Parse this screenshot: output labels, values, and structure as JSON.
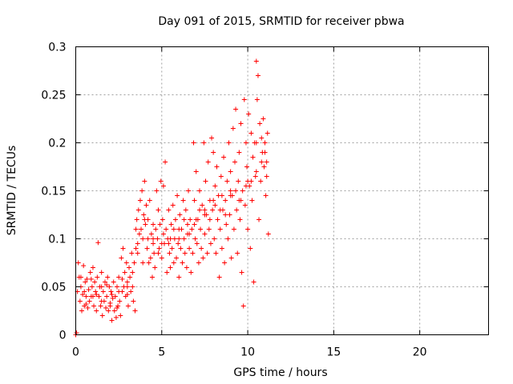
{
  "chart_data": {
    "type": "scatter",
    "title": "Day 091 of 2015, SRMTID for receiver pbwa",
    "xlabel": "GPS time / hours",
    "ylabel": "SRMTID / TECUs",
    "xlim": [
      0,
      24
    ],
    "ylim": [
      0,
      0.3
    ],
    "xticks": [
      0,
      5,
      10,
      15,
      20
    ],
    "xtick_labels": [
      "0",
      "5",
      "10",
      "15",
      "20"
    ],
    "yticks": [
      0,
      0.05,
      0.1,
      0.15,
      0.2,
      0.25,
      0.3
    ],
    "ytick_labels": [
      "0",
      "0.05",
      "0.1",
      "0.15",
      "0.2",
      "0.25",
      "0.3"
    ],
    "grid": true,
    "marker": "+",
    "color": "#ff0000",
    "series": [
      {
        "name": "SRMTID pbwa",
        "points": [
          [
            0.0,
            0.0
          ],
          [
            0.05,
            0.002
          ],
          [
            0.1,
            0.045
          ],
          [
            0.15,
            0.075
          ],
          [
            0.2,
            0.06
          ],
          [
            0.25,
            0.035
          ],
          [
            0.3,
            0.05
          ],
          [
            0.35,
            0.025
          ],
          [
            0.4,
            0.042
          ],
          [
            0.45,
            0.072
          ],
          [
            0.5,
            0.03
          ],
          [
            0.55,
            0.055
          ],
          [
            0.6,
            0.04
          ],
          [
            0.65,
            0.058
          ],
          [
            0.7,
            0.028
          ],
          [
            0.75,
            0.047
          ],
          [
            0.8,
            0.035
          ],
          [
            0.85,
            0.065
          ],
          [
            0.9,
            0.04
          ],
          [
            0.95,
            0.05
          ],
          [
            1.0,
            0.07
          ],
          [
            1.05,
            0.03
          ],
          [
            1.1,
            0.055
          ],
          [
            1.15,
            0.045
          ],
          [
            1.2,
            0.025
          ],
          [
            1.25,
            0.06
          ],
          [
            1.3,
            0.096
          ],
          [
            1.35,
            0.04
          ],
          [
            1.4,
            0.05
          ],
          [
            1.45,
            0.03
          ],
          [
            1.5,
            0.065
          ],
          [
            1.55,
            0.02
          ],
          [
            1.6,
            0.045
          ],
          [
            1.65,
            0.035
          ],
          [
            1.7,
            0.055
          ],
          [
            1.75,
            0.028
          ],
          [
            1.8,
            0.04
          ],
          [
            1.85,
            0.06
          ],
          [
            1.9,
            0.025
          ],
          [
            1.95,
            0.05
          ],
          [
            2.0,
            0.033
          ],
          [
            2.05,
            0.045
          ],
          [
            2.1,
            0.015
          ],
          [
            2.15,
            0.038
          ],
          [
            2.2,
            0.055
          ],
          [
            2.25,
            0.025
          ],
          [
            2.3,
            0.04
          ],
          [
            2.35,
            0.018
          ],
          [
            2.4,
            0.05
          ],
          [
            2.45,
            0.03
          ],
          [
            2.5,
            0.06
          ],
          [
            2.55,
            0.035
          ],
          [
            2.6,
            0.02
          ],
          [
            2.65,
            0.08
          ],
          [
            2.7,
            0.045
          ],
          [
            2.75,
            0.09
          ],
          [
            2.8,
            0.05
          ],
          [
            2.85,
            0.065
          ],
          [
            2.9,
            0.04
          ],
          [
            2.95,
            0.075
          ],
          [
            3.0,
            0.055
          ],
          [
            3.05,
            0.03
          ],
          [
            3.1,
            0.07
          ],
          [
            3.15,
            0.06
          ],
          [
            3.2,
            0.045
          ],
          [
            3.25,
            0.085
          ],
          [
            3.3,
            0.05
          ],
          [
            3.35,
            0.035
          ],
          [
            3.4,
            0.075
          ],
          [
            3.45,
            0.025
          ],
          [
            3.5,
            0.11
          ],
          [
            3.55,
            0.12
          ],
          [
            3.6,
            0.095
          ],
          [
            3.65,
            0.13
          ],
          [
            3.7,
            0.105
          ],
          [
            3.75,
            0.14
          ],
          [
            3.8,
            0.11
          ],
          [
            3.85,
            0.15
          ],
          [
            3.9,
            0.1
          ],
          [
            3.95,
            0.125
          ],
          [
            4.0,
            0.16
          ],
          [
            4.05,
            0.115
          ],
          [
            4.1,
            0.135
          ],
          [
            4.15,
            0.09
          ],
          [
            4.2,
            0.12
          ],
          [
            4.25,
            0.075
          ],
          [
            4.3,
            0.14
          ],
          [
            4.35,
            0.08
          ],
          [
            4.4,
            0.105
          ],
          [
            4.45,
            0.06
          ],
          [
            4.5,
            0.095
          ],
          [
            4.55,
            0.085
          ],
          [
            4.6,
            0.07
          ],
          [
            4.65,
            0.11
          ],
          [
            4.7,
            0.15
          ],
          [
            4.75,
            0.1
          ],
          [
            4.8,
            0.13
          ],
          [
            4.85,
            0.09
          ],
          [
            4.9,
            0.115
          ],
          [
            4.95,
            0.16
          ],
          [
            5.0,
            0.08
          ],
          [
            5.05,
            0.12
          ],
          [
            5.1,
            0.155
          ],
          [
            5.15,
            0.095
          ],
          [
            5.2,
            0.18
          ],
          [
            5.25,
            0.11
          ],
          [
            5.3,
            0.065
          ],
          [
            5.35,
            0.1
          ],
          [
            5.4,
            0.13
          ],
          [
            5.45,
            0.085
          ],
          [
            5.5,
            0.07
          ],
          [
            5.55,
            0.115
          ],
          [
            5.6,
            0.09
          ],
          [
            5.65,
            0.135
          ],
          [
            5.7,
            0.075
          ],
          [
            5.75,
            0.1
          ],
          [
            5.8,
            0.12
          ],
          [
            5.85,
            0.08
          ],
          [
            5.9,
            0.145
          ],
          [
            5.95,
            0.095
          ],
          [
            6.0,
            0.06
          ],
          [
            6.05,
            0.125
          ],
          [
            6.1,
            0.09
          ],
          [
            6.15,
            0.11
          ],
          [
            6.2,
            0.075
          ],
          [
            6.25,
            0.14
          ],
          [
            6.3,
            0.1
          ],
          [
            6.35,
            0.085
          ],
          [
            6.4,
            0.13
          ],
          [
            6.45,
            0.07
          ],
          [
            6.5,
            0.105
          ],
          [
            6.55,
            0.15
          ],
          [
            6.6,
            0.09
          ],
          [
            6.65,
            0.12
          ],
          [
            6.7,
            0.065
          ],
          [
            6.75,
            0.11
          ],
          [
            6.8,
            0.085
          ],
          [
            6.85,
            0.2
          ],
          [
            6.9,
            0.14
          ],
          [
            6.95,
            0.1
          ],
          [
            7.0,
            0.17
          ],
          [
            7.05,
            0.095
          ],
          [
            7.1,
            0.12
          ],
          [
            7.15,
            0.075
          ],
          [
            7.2,
            0.15
          ],
          [
            7.25,
            0.11
          ],
          [
            7.3,
            0.09
          ],
          [
            7.35,
            0.135
          ],
          [
            7.4,
            0.08
          ],
          [
            7.45,
            0.2
          ],
          [
            7.5,
            0.105
          ],
          [
            7.55,
            0.16
          ],
          [
            7.6,
            0.125
          ],
          [
            7.65,
            0.085
          ],
          [
            7.7,
            0.18
          ],
          [
            7.75,
            0.11
          ],
          [
            7.8,
            0.14
          ],
          [
            7.85,
            0.095
          ],
          [
            7.9,
            0.205
          ],
          [
            7.95,
            0.13
          ],
          [
            8.0,
            0.19
          ],
          [
            8.05,
            0.1
          ],
          [
            8.1,
            0.155
          ],
          [
            8.15,
            0.085
          ],
          [
            8.2,
            0.175
          ],
          [
            8.25,
            0.12
          ],
          [
            8.3,
            0.145
          ],
          [
            8.35,
            0.06
          ],
          [
            8.4,
            0.11
          ],
          [
            8.45,
            0.165
          ],
          [
            8.5,
            0.09
          ],
          [
            8.55,
            0.13
          ],
          [
            8.6,
            0.185
          ],
          [
            8.65,
            0.075
          ],
          [
            8.7,
            0.14
          ],
          [
            8.75,
            0.115
          ],
          [
            8.8,
            0.16
          ],
          [
            8.85,
            0.1
          ],
          [
            8.9,
            0.2
          ],
          [
            8.95,
            0.125
          ],
          [
            9.0,
            0.17
          ],
          [
            9.05,
            0.08
          ],
          [
            9.1,
            0.145
          ],
          [
            9.15,
            0.215
          ],
          [
            9.2,
            0.11
          ],
          [
            9.25,
            0.18
          ],
          [
            9.3,
            0.235
          ],
          [
            9.35,
            0.13
          ],
          [
            9.4,
            0.085
          ],
          [
            9.45,
            0.16
          ],
          [
            9.5,
            0.19
          ],
          [
            9.55,
            0.12
          ],
          [
            9.6,
            0.22
          ],
          [
            9.65,
            0.065
          ],
          [
            9.7,
            0.15
          ],
          [
            9.75,
            0.03
          ],
          [
            9.8,
            0.245
          ],
          [
            9.85,
            0.135
          ],
          [
            9.9,
            0.2
          ],
          [
            9.95,
            0.175
          ],
          [
            10.0,
            0.11
          ],
          [
            10.05,
            0.23
          ],
          [
            10.1,
            0.155
          ],
          [
            10.15,
            0.09
          ],
          [
            10.2,
            0.21
          ],
          [
            10.25,
            0.14
          ],
          [
            10.3,
            0.185
          ],
          [
            10.35,
            0.055
          ],
          [
            10.4,
            0.2
          ],
          [
            10.45,
            0.165
          ],
          [
            10.5,
            0.285
          ],
          [
            10.55,
            0.245
          ],
          [
            10.6,
            0.27
          ],
          [
            10.65,
            0.12
          ],
          [
            10.7,
            0.22
          ],
          [
            10.75,
            0.16
          ],
          [
            10.8,
            0.205
          ],
          [
            10.85,
            0.19
          ],
          [
            10.9,
            0.225
          ],
          [
            10.95,
            0.175
          ],
          [
            11.0,
            0.2
          ],
          [
            11.05,
            0.145
          ],
          [
            11.1,
            0.18
          ],
          [
            11.15,
            0.21
          ],
          [
            11.2,
            0.105
          ],
          [
            0.3,
            0.06
          ],
          [
            0.6,
            0.032
          ],
          [
            0.9,
            0.058
          ],
          [
            1.2,
            0.042
          ],
          [
            1.5,
            0.035
          ],
          [
            1.8,
            0.052
          ],
          [
            2.1,
            0.042
          ],
          [
            2.4,
            0.028
          ],
          [
            2.7,
            0.058
          ],
          [
            3.0,
            0.042
          ],
          [
            3.3,
            0.065
          ],
          [
            3.6,
            0.085
          ],
          [
            3.9,
            0.075
          ],
          [
            4.2,
            0.1
          ],
          [
            4.5,
            0.115
          ],
          [
            4.8,
            0.085
          ],
          [
            5.1,
            0.105
          ],
          [
            5.4,
            0.095
          ],
          [
            5.7,
            0.11
          ],
          [
            6.0,
            0.1
          ],
          [
            6.3,
            0.12
          ],
          [
            6.6,
            0.105
          ],
          [
            6.9,
            0.115
          ],
          [
            7.2,
            0.13
          ],
          [
            7.5,
            0.125
          ],
          [
            7.8,
            0.12
          ],
          [
            8.1,
            0.135
          ],
          [
            8.4,
            0.13
          ],
          [
            8.7,
            0.125
          ],
          [
            9.0,
            0.145
          ],
          [
            9.3,
            0.15
          ],
          [
            9.6,
            0.14
          ],
          [
            9.9,
            0.155
          ],
          [
            10.2,
            0.16
          ],
          [
            10.5,
            0.17
          ],
          [
            10.8,
            0.18
          ],
          [
            11.1,
            0.165
          ],
          [
            0.5,
            0.045
          ],
          [
            1.0,
            0.04
          ],
          [
            1.5,
            0.05
          ],
          [
            2.0,
            0.03
          ],
          [
            2.5,
            0.045
          ],
          [
            3.0,
            0.05
          ],
          [
            3.5,
            0.09
          ],
          [
            4.0,
            0.12
          ],
          [
            4.5,
            0.1
          ],
          [
            5.0,
            0.095
          ],
          [
            5.5,
            0.1
          ],
          [
            6.0,
            0.11
          ],
          [
            6.5,
            0.115
          ],
          [
            7.0,
            0.12
          ],
          [
            7.5,
            0.13
          ],
          [
            8.0,
            0.14
          ],
          [
            8.5,
            0.145
          ],
          [
            9.0,
            0.15
          ],
          [
            9.5,
            0.14
          ],
          [
            10.0,
            0.16
          ],
          [
            10.5,
            0.2
          ],
          [
            11.0,
            0.19
          ]
        ]
      }
    ]
  }
}
